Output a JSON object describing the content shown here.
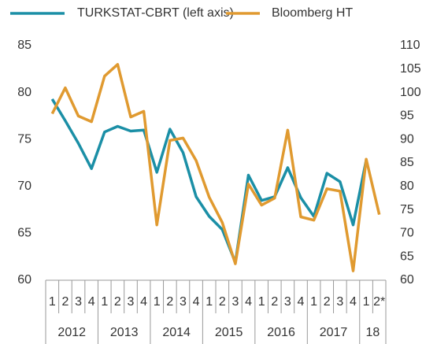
{
  "chart_data": {
    "type": "line",
    "groups": [
      {
        "label": "2012",
        "quarters": [
          "1",
          "2",
          "3",
          "4"
        ]
      },
      {
        "label": "2013",
        "quarters": [
          "1",
          "2",
          "3",
          "4"
        ]
      },
      {
        "label": "2014",
        "quarters": [
          "1",
          "2",
          "3",
          "4"
        ]
      },
      {
        "label": "2015",
        "quarters": [
          "1",
          "2",
          "3",
          "4"
        ]
      },
      {
        "label": "2016",
        "quarters": [
          "1",
          "2",
          "3",
          "4"
        ]
      },
      {
        "label": "2017",
        "quarters": [
          "1",
          "2",
          "3",
          "4"
        ]
      },
      {
        "label": "18",
        "quarters": [
          "1",
          "2*"
        ]
      }
    ],
    "series": [
      {
        "name": "TURKSTAT-CBRT (left axis)",
        "color": "#1b8fa6",
        "axis": "y",
        "values": [
          79.3,
          77.0,
          74.6,
          71.9,
          75.8,
          76.4,
          75.9,
          76.0,
          71.5,
          76.1,
          73.6,
          68.9,
          66.8,
          65.4,
          61.9,
          71.2,
          68.5,
          68.9,
          72.0,
          68.8,
          66.8,
          71.4,
          70.5,
          65.9,
          72.8,
          null
        ]
      },
      {
        "name": "Bloomberg HT",
        "color": "#e09a30",
        "axis": "y2",
        "values": [
          95.5,
          101,
          95,
          93.8,
          103.5,
          106,
          94.8,
          96,
          71.8,
          89.8,
          90.3,
          85.5,
          77.7,
          72.3,
          63.5,
          80.5,
          76,
          77.5,
          92,
          73.5,
          72.8,
          79.5,
          79,
          62,
          85.8,
          74
        ]
      }
    ],
    "ylim": [
      60,
      85
    ],
    "yticks": [
      60,
      65,
      70,
      75,
      80,
      85
    ],
    "y2lim": [
      60,
      110
    ],
    "y2ticks": [
      60,
      65,
      70,
      75,
      80,
      85,
      90,
      95,
      100,
      105,
      110
    ]
  }
}
